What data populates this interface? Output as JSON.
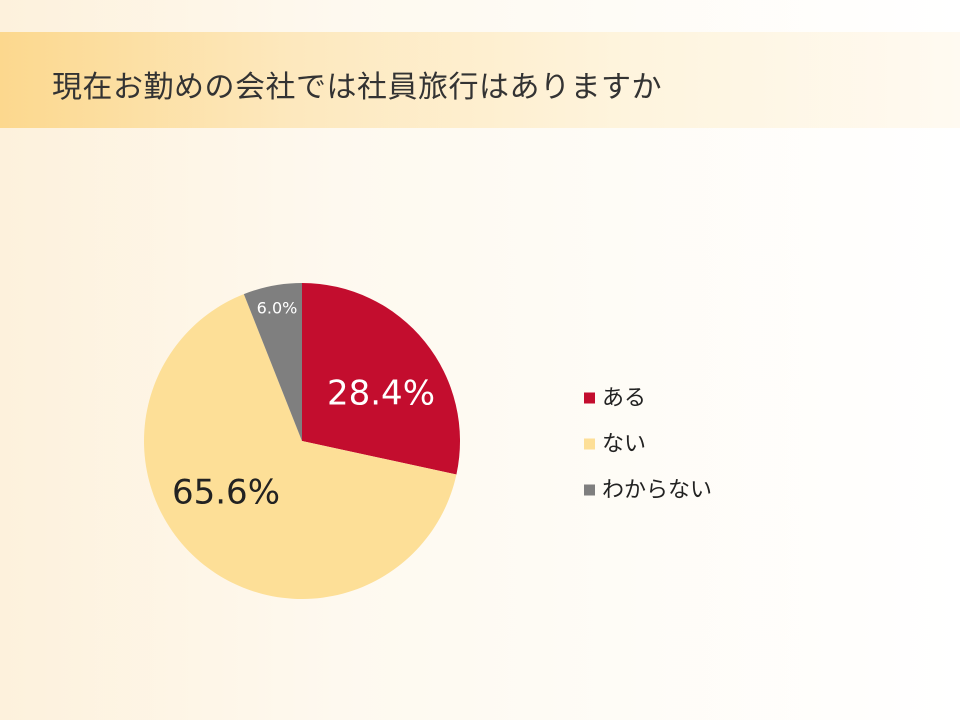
{
  "page": {
    "title": "現在お勤めの会社では社員旅行はありますか"
  },
  "chart_data": {
    "type": "pie",
    "title": "",
    "categories": [
      "ある",
      "ない",
      "わからない"
    ],
    "values": [
      28.4,
      65.6,
      6.0
    ],
    "data_labels": [
      "28.4%",
      "65.6%",
      "6.0%"
    ],
    "colors": [
      "#c30d2e",
      "#fddf97",
      "#7f7f7f"
    ],
    "label_colors": [
      "#ffffff",
      "#222222",
      "#ffffff"
    ],
    "start_angle_deg": 0,
    "direction": "clockwise",
    "legend": {
      "position": "right",
      "entries": [
        "ある",
        "ない",
        "わからない"
      ]
    }
  }
}
